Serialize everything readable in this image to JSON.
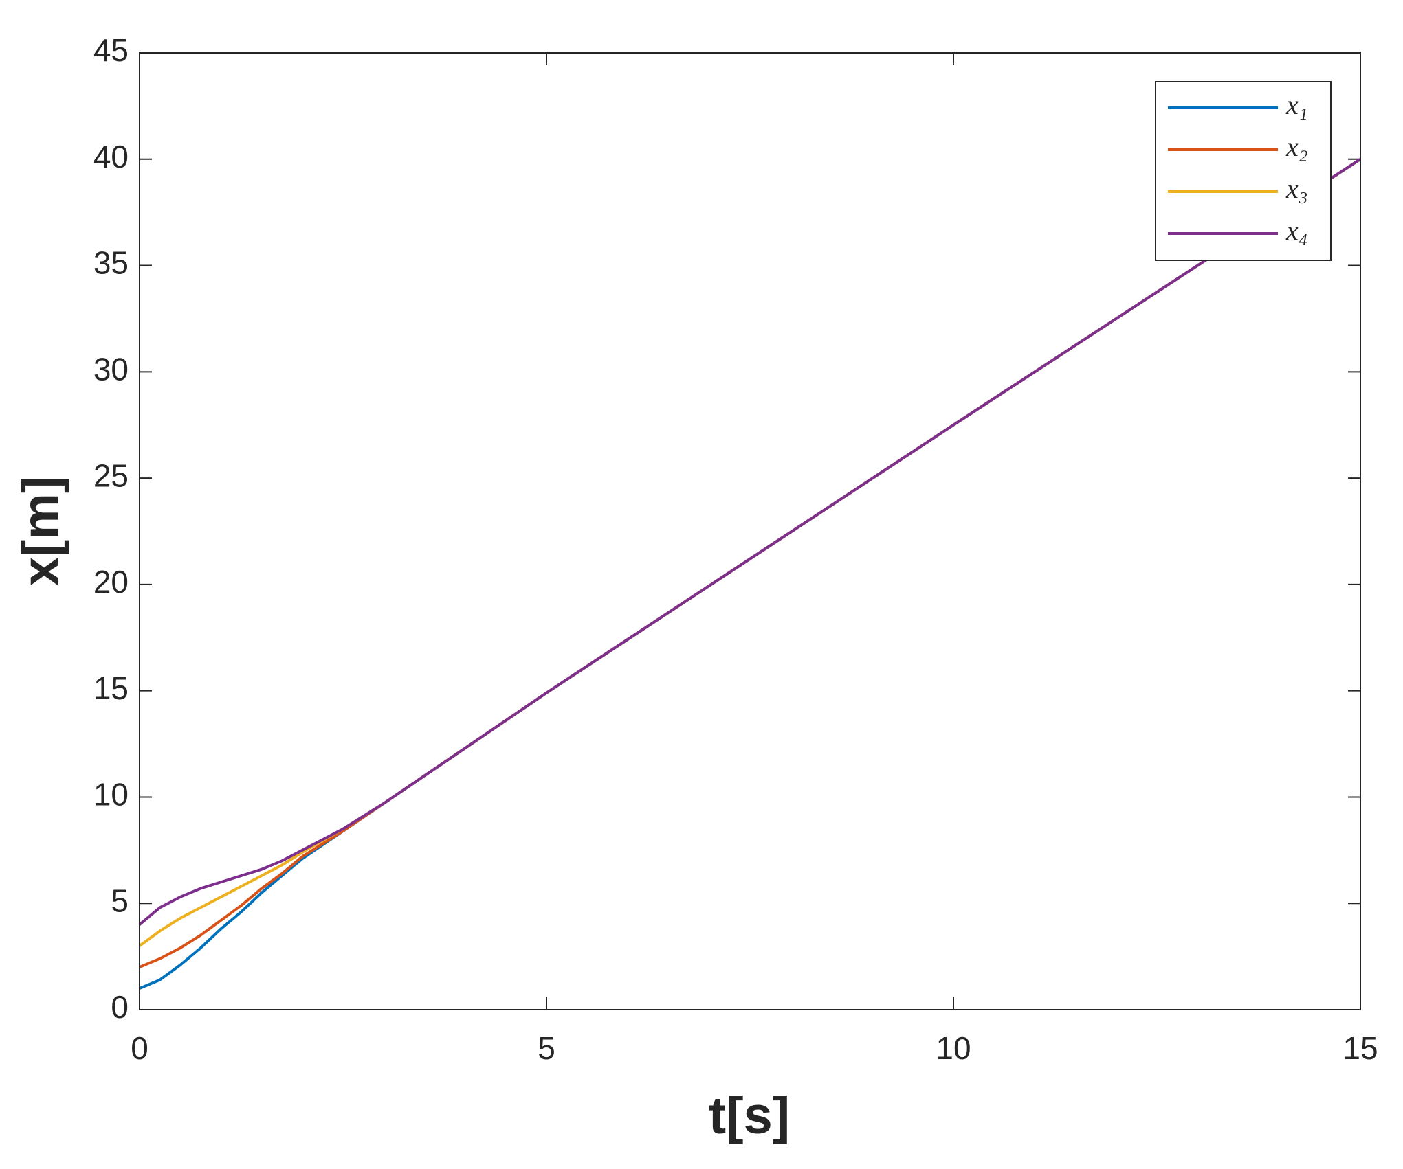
{
  "chart_data": {
    "type": "line",
    "xlabel": "t[s]",
    "ylabel": "x[m]",
    "x": [
      0,
      0.25,
      0.5,
      0.75,
      1,
      1.25,
      1.5,
      1.75,
      2,
      2.5,
      3,
      5,
      10,
      15
    ],
    "series": [
      {
        "name": "x₁",
        "color": "#0072BD",
        "values": [
          1,
          1.4,
          2.1,
          2.9,
          3.8,
          4.6,
          5.5,
          6.3,
          7.1,
          8.4,
          9.7,
          14.9,
          27.5,
          40
        ]
      },
      {
        "name": "x₂",
        "color": "#D95319",
        "values": [
          2,
          2.4,
          2.9,
          3.5,
          4.2,
          4.9,
          5.7,
          6.4,
          7.2,
          8.4,
          9.7,
          14.9,
          27.5,
          40
        ]
      },
      {
        "name": "x₃",
        "color": "#EDB120",
        "values": [
          3,
          3.7,
          4.3,
          4.8,
          5.3,
          5.8,
          6.3,
          6.8,
          7.4,
          8.5,
          9.7,
          14.9,
          27.5,
          40
        ]
      },
      {
        "name": "x₄",
        "color": "#7E2F8E",
        "values": [
          4,
          4.8,
          5.3,
          5.7,
          6.0,
          6.3,
          6.6,
          7.0,
          7.5,
          8.5,
          9.7,
          14.9,
          27.5,
          40
        ]
      }
    ],
    "xlim": [
      0,
      15
    ],
    "xticks": [
      0,
      5,
      10,
      15
    ],
    "ylim": [
      0,
      45
    ],
    "yticks": [
      0,
      5,
      10,
      15,
      20,
      25,
      30,
      35,
      40,
      45
    ],
    "legend": "upper right"
  }
}
